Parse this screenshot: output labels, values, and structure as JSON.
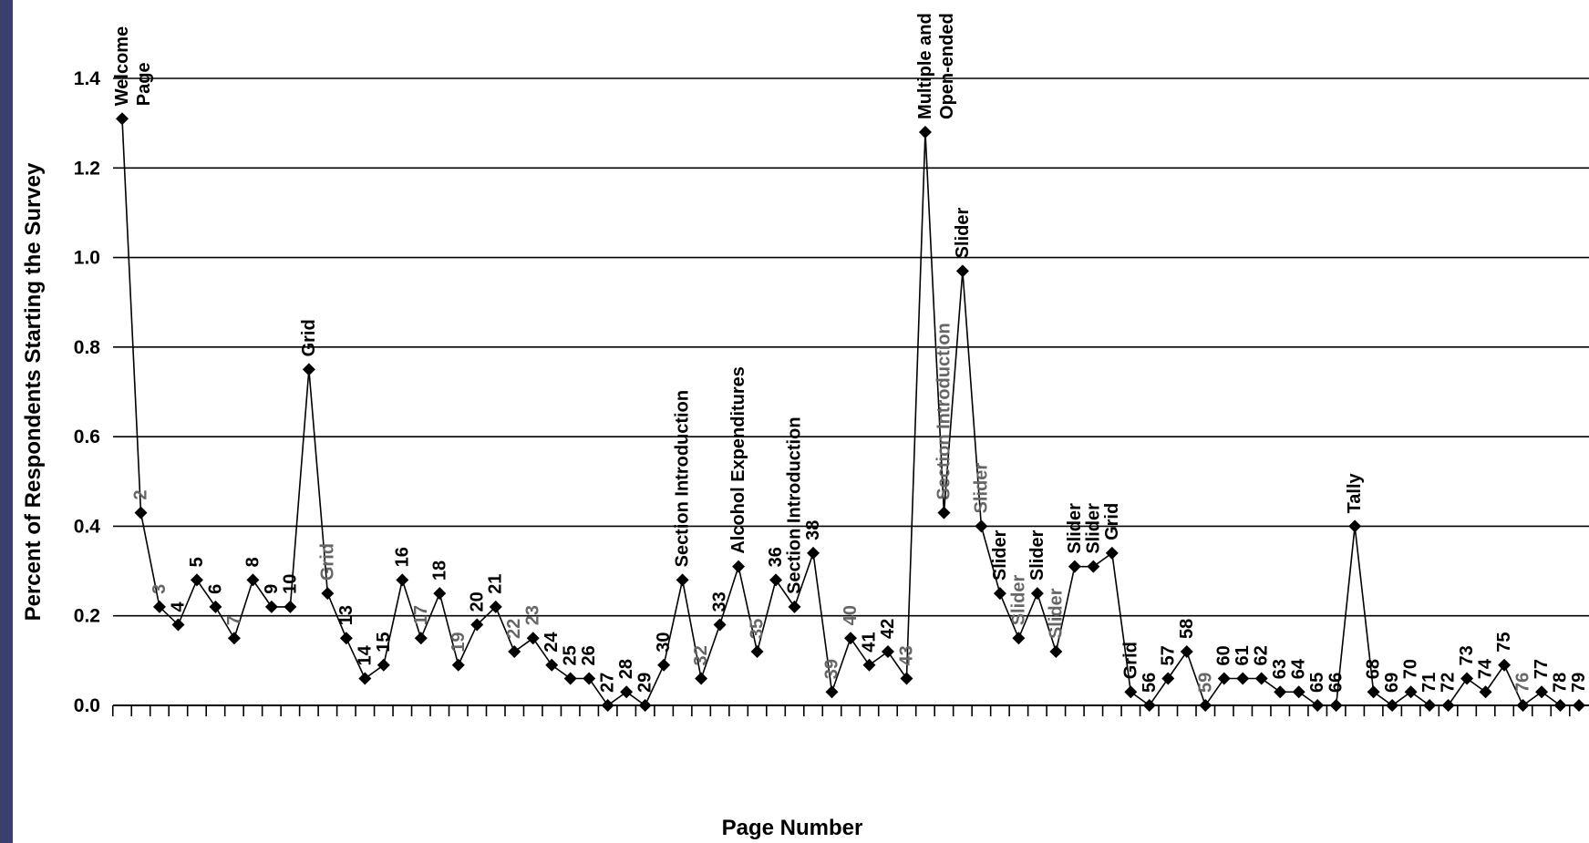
{
  "chart_data": {
    "type": "line",
    "title": "",
    "xlabel": "Page Number",
    "ylabel": "Percent of Respondents Starting the Survey",
    "ylim": [
      0,
      1.4
    ],
    "yticks": [
      "0.0",
      "0.2",
      "0.4",
      "0.6",
      "0.8",
      "1.0",
      "1.2",
      "1.4"
    ],
    "grid": true,
    "series": [
      {
        "x": [
          1,
          2,
          3,
          4,
          5,
          6,
          7,
          8,
          9,
          10,
          11,
          12,
          13,
          14,
          15,
          16,
          17,
          18,
          19,
          20,
          21,
          22,
          23,
          24,
          25,
          26,
          27,
          28,
          29,
          30,
          31,
          32,
          33,
          34,
          35,
          36,
          37,
          38,
          39,
          40,
          41,
          42,
          43,
          44,
          45,
          46,
          47,
          48,
          49,
          50,
          51,
          52,
          53,
          54,
          55,
          56,
          57,
          58,
          59,
          60,
          61,
          62,
          63,
          64,
          65,
          66,
          67,
          68,
          69,
          70,
          71,
          72,
          73,
          74,
          75,
          76,
          77,
          78,
          79
        ],
        "values": [
          1.31,
          0.43,
          0.22,
          0.18,
          0.28,
          0.22,
          0.15,
          0.28,
          0.22,
          0.22,
          0.75,
          0.25,
          0.15,
          0.06,
          0.09,
          0.28,
          0.15,
          0.25,
          0.09,
          0.18,
          0.22,
          0.12,
          0.15,
          0.09,
          0.06,
          0.06,
          0.0,
          0.03,
          0.0,
          0.09,
          0.28,
          0.06,
          0.18,
          0.31,
          0.12,
          0.28,
          0.22,
          0.34,
          0.03,
          0.15,
          0.09,
          0.12,
          0.06,
          1.28,
          0.43,
          0.97,
          0.4,
          0.25,
          0.15,
          0.25,
          0.12,
          0.31,
          0.31,
          0.34,
          0.03,
          0.0,
          0.06,
          0.12,
          0.0,
          0.06,
          0.06,
          0.06,
          0.03,
          0.03,
          0.0,
          0.0,
          0.4,
          0.03,
          0.0,
          0.03,
          0.0,
          0.0,
          0.06,
          0.03,
          0.09,
          0.0,
          0.03,
          0.0,
          0.0
        ]
      }
    ],
    "point_labels": [
      {
        "lines": [
          "Welcome",
          "Page"
        ],
        "style": "dark"
      },
      {
        "lines": [
          "2"
        ],
        "style": "gray"
      },
      {
        "lines": [
          "3"
        ],
        "style": "gray"
      },
      {
        "lines": [
          "4"
        ],
        "style": "dark"
      },
      {
        "lines": [
          "5"
        ],
        "style": "dark"
      },
      {
        "lines": [
          "6"
        ],
        "style": "dark"
      },
      {
        "lines": [
          "7"
        ],
        "style": "gray"
      },
      {
        "lines": [
          "8"
        ],
        "style": "dark"
      },
      {
        "lines": [
          "9"
        ],
        "style": "dark"
      },
      {
        "lines": [
          "10"
        ],
        "style": "dark"
      },
      {
        "lines": [
          "Grid"
        ],
        "style": "dark"
      },
      {
        "lines": [
          "Grid"
        ],
        "style": "gray"
      },
      {
        "lines": [
          "13"
        ],
        "style": "dark"
      },
      {
        "lines": [
          "14"
        ],
        "style": "dark"
      },
      {
        "lines": [
          "15"
        ],
        "style": "dark"
      },
      {
        "lines": [
          "16"
        ],
        "style": "dark"
      },
      {
        "lines": [
          "17"
        ],
        "style": "gray"
      },
      {
        "lines": [
          "18"
        ],
        "style": "dark"
      },
      {
        "lines": [
          "19"
        ],
        "style": "gray"
      },
      {
        "lines": [
          "20"
        ],
        "style": "dark"
      },
      {
        "lines": [
          "21"
        ],
        "style": "dark"
      },
      {
        "lines": [
          "22"
        ],
        "style": "gray"
      },
      {
        "lines": [
          "23"
        ],
        "style": "gray"
      },
      {
        "lines": [
          "24"
        ],
        "style": "dark"
      },
      {
        "lines": [
          "25"
        ],
        "style": "dark"
      },
      {
        "lines": [
          "26"
        ],
        "style": "dark"
      },
      {
        "lines": [
          "27"
        ],
        "style": "dark"
      },
      {
        "lines": [
          "28"
        ],
        "style": "dark"
      },
      {
        "lines": [
          "29"
        ],
        "style": "dark"
      },
      {
        "lines": [
          "30"
        ],
        "style": "dark"
      },
      {
        "lines": [
          "Section Introduction"
        ],
        "style": "dark"
      },
      {
        "lines": [
          "32"
        ],
        "style": "gray"
      },
      {
        "lines": [
          "33"
        ],
        "style": "dark"
      },
      {
        "lines": [
          "Alcohol Expenditures"
        ],
        "style": "dark"
      },
      {
        "lines": [
          "35"
        ],
        "style": "gray"
      },
      {
        "lines": [
          "36"
        ],
        "style": "dark"
      },
      {
        "lines": [
          "Section Introduction"
        ],
        "style": "dark"
      },
      {
        "lines": [
          "38"
        ],
        "style": "dark"
      },
      {
        "lines": [
          "39"
        ],
        "style": "gray"
      },
      {
        "lines": [
          "40"
        ],
        "style": "gray"
      },
      {
        "lines": [
          "41"
        ],
        "style": "dark"
      },
      {
        "lines": [
          "42"
        ],
        "style": "dark"
      },
      {
        "lines": [
          "43"
        ],
        "style": "gray"
      },
      {
        "lines": [
          "Multiple and",
          "Open-ended"
        ],
        "style": "dark"
      },
      {
        "lines": [
          "Section Introduction"
        ],
        "style": "gray"
      },
      {
        "lines": [
          "Slider"
        ],
        "style": "dark"
      },
      {
        "lines": [
          "Slider"
        ],
        "style": "gray"
      },
      {
        "lines": [
          "Slider"
        ],
        "style": "dark"
      },
      {
        "lines": [
          "Slider"
        ],
        "style": "gray"
      },
      {
        "lines": [
          "Slider"
        ],
        "style": "dark"
      },
      {
        "lines": [
          "Slider"
        ],
        "style": "gray"
      },
      {
        "lines": [
          "Slider"
        ],
        "style": "dark"
      },
      {
        "lines": [
          "Slider"
        ],
        "style": "dark"
      },
      {
        "lines": [
          "Grid"
        ],
        "style": "dark"
      },
      {
        "lines": [
          "Grid"
        ],
        "style": "dark"
      },
      {
        "lines": [
          "56"
        ],
        "style": "dark"
      },
      {
        "lines": [
          "57"
        ],
        "style": "dark"
      },
      {
        "lines": [
          "58"
        ],
        "style": "dark"
      },
      {
        "lines": [
          "59"
        ],
        "style": "gray"
      },
      {
        "lines": [
          "60"
        ],
        "style": "dark"
      },
      {
        "lines": [
          "61"
        ],
        "style": "dark"
      },
      {
        "lines": [
          "62"
        ],
        "style": "dark"
      },
      {
        "lines": [
          "63"
        ],
        "style": "dark"
      },
      {
        "lines": [
          "64"
        ],
        "style": "dark"
      },
      {
        "lines": [
          "65"
        ],
        "style": "dark"
      },
      {
        "lines": [
          "66"
        ],
        "style": "dark"
      },
      {
        "lines": [
          "Tally"
        ],
        "style": "dark"
      },
      {
        "lines": [
          "68"
        ],
        "style": "dark"
      },
      {
        "lines": [
          "69"
        ],
        "style": "dark"
      },
      {
        "lines": [
          "70"
        ],
        "style": "dark"
      },
      {
        "lines": [
          "71"
        ],
        "style": "dark"
      },
      {
        "lines": [
          "72"
        ],
        "style": "dark"
      },
      {
        "lines": [
          "73"
        ],
        "style": "dark"
      },
      {
        "lines": [
          "74"
        ],
        "style": "dark"
      },
      {
        "lines": [
          "75"
        ],
        "style": "dark"
      },
      {
        "lines": [
          "76"
        ],
        "style": "gray"
      },
      {
        "lines": [
          "77"
        ],
        "style": "dark"
      },
      {
        "lines": [
          "78"
        ],
        "style": "dark"
      },
      {
        "lines": [
          "79"
        ],
        "style": "dark"
      }
    ],
    "colors": {
      "frame_background": "#3a3f6e",
      "plot_background": "#ffffff",
      "line": "#000000",
      "label_dark": "#000000",
      "label_gray": "#666666"
    }
  }
}
